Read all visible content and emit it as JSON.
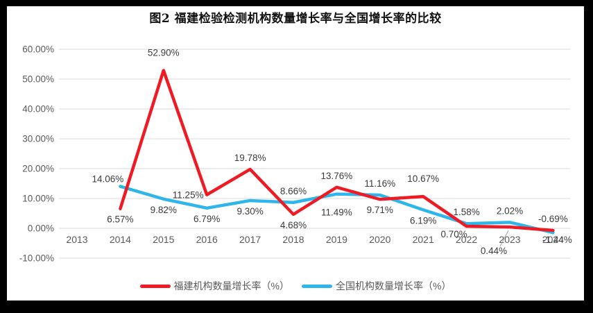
{
  "window": {
    "frame_color": "#000000",
    "panel_color": "#ffffff"
  },
  "chart_data": {
    "type": "line",
    "title": "图2 福建检验检测机构数量增长率与全国增长率的比较",
    "xlabel": "",
    "ylabel": "",
    "categories": [
      "2013",
      "2014",
      "2015",
      "2016",
      "2017",
      "2018",
      "2019",
      "2020",
      "2021",
      "2022",
      "2023",
      "2024"
    ],
    "y_axis": {
      "range": [
        -10,
        60
      ],
      "tick_values": [
        60,
        50,
        40,
        30,
        20,
        10,
        0,
        -10
      ],
      "tick_labels": [
        "60.00%",
        "50.00%",
        "40.00%",
        "30.00%",
        "20.00%",
        "10.00%",
        "0.00%",
        "-10.00%"
      ],
      "gridlines": true,
      "gridline_color": "#d9d9d9",
      "label_color": "#595959"
    },
    "x_axis": {
      "label_color": "#595959"
    },
    "series": [
      {
        "name": "全国机构数量增长率（%）",
        "key": "national",
        "color": "#2eb6ea",
        "line_width": 4.5,
        "values": [
          null,
          14.06,
          9.82,
          6.79,
          9.3,
          8.66,
          11.49,
          11.16,
          6.19,
          1.58,
          2.02,
          -1.44
        ],
        "labels": [
          null,
          "14.06%",
          "9.82%",
          "6.79%",
          "9.30%",
          "8.66%",
          "11.49%",
          "11.16%",
          "6.19%",
          "1.58%",
          "2.02%",
          "-1.44%"
        ],
        "label_positions": [
          null,
          "above-left",
          "below",
          "below",
          "below",
          "above",
          "below-far",
          "above",
          "below",
          "above",
          "above",
          "below-right"
        ]
      },
      {
        "name": "福建机构数量增长率（%）",
        "key": "fujian",
        "color": "#ee1b24",
        "line_width": 4.5,
        "values": [
          null,
          6.57,
          52.9,
          11.25,
          19.78,
          4.68,
          13.76,
          9.71,
          10.67,
          0.7,
          0.44,
          -0.69
        ],
        "labels": [
          null,
          "6.57%",
          "52.90%",
          "11.25%",
          "19.78%",
          "4.68%",
          "13.76%",
          "9.71%",
          "10.67%",
          "0.70%",
          "0.44%",
          "-0.69%"
        ],
        "label_positions": [
          null,
          "below",
          "above-far",
          "left",
          "above",
          "below",
          "above",
          "below",
          "above-far",
          "below-left",
          "leader",
          "above"
        ]
      }
    ],
    "data_label_color": "#3a3a3a",
    "leader_line_color": "#9f9f9f",
    "legend_position": "bottom"
  }
}
